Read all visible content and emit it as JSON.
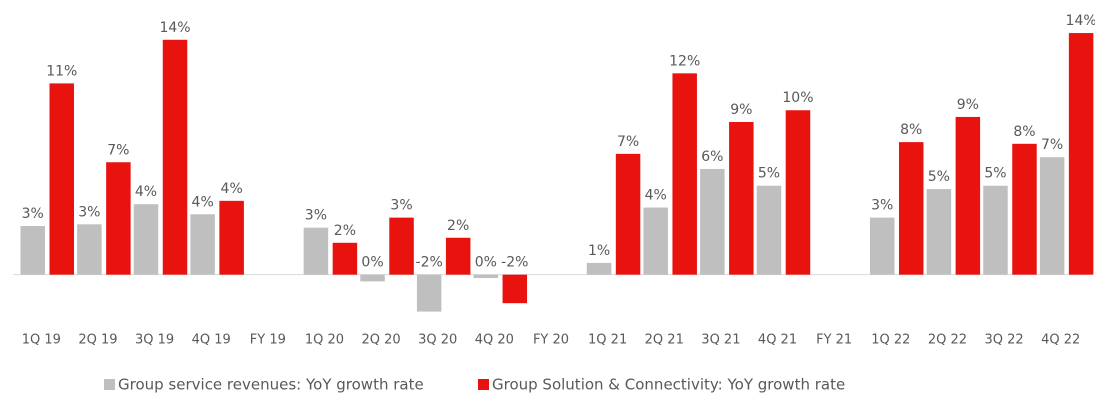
{
  "chart_data": {
    "type": "bar",
    "categories": [
      "1Q 19",
      "2Q 19",
      "3Q 19",
      "4Q 19",
      "FY 19",
      "1Q 20",
      "2Q 20",
      "3Q 20",
      "4Q 20",
      "FY 20",
      "1Q 21",
      "2Q 21",
      "3Q 21",
      "4Q 21",
      "FY 21",
      "1Q 22",
      "2Q 22",
      "3Q 22",
      "4Q 22"
    ],
    "series": [
      {
        "name": "Group service revenues: YoY growth rate",
        "color": "#bfbfbf",
        "values": [
          2.9,
          3.0,
          4.2,
          3.6,
          null,
          2.8,
          -0.4,
          -2.2,
          -0.2,
          null,
          0.7,
          4.0,
          6.3,
          5.3,
          null,
          3.4,
          5.1,
          5.3,
          7.0
        ],
        "value_labels": [
          "3%",
          "3%",
          "4%",
          "4%",
          null,
          "3%",
          "0%",
          "-2%",
          "0%",
          null,
          "1%",
          "4%",
          "6%",
          "5%",
          null,
          "3%",
          "5%",
          "5%",
          "7%"
        ]
      },
      {
        "name": "Group Solution & Connectivity: YoY growth rate",
        "color": "#e8130f",
        "values": [
          11.4,
          6.7,
          14.0,
          4.4,
          null,
          1.9,
          3.4,
          2.2,
          -1.7,
          null,
          7.2,
          12.0,
          9.1,
          9.8,
          null,
          7.9,
          9.4,
          7.8,
          14.4
        ],
        "value_labels": [
          "11%",
          "7%",
          "14%",
          "4%",
          null,
          "2%",
          "3%",
          "2%",
          "-2%",
          null,
          "7%",
          "12%",
          "9%",
          "10%",
          null,
          "8%",
          "9%",
          "8%",
          "14%"
        ]
      }
    ],
    "ylim": [
      -3,
      15
    ]
  }
}
